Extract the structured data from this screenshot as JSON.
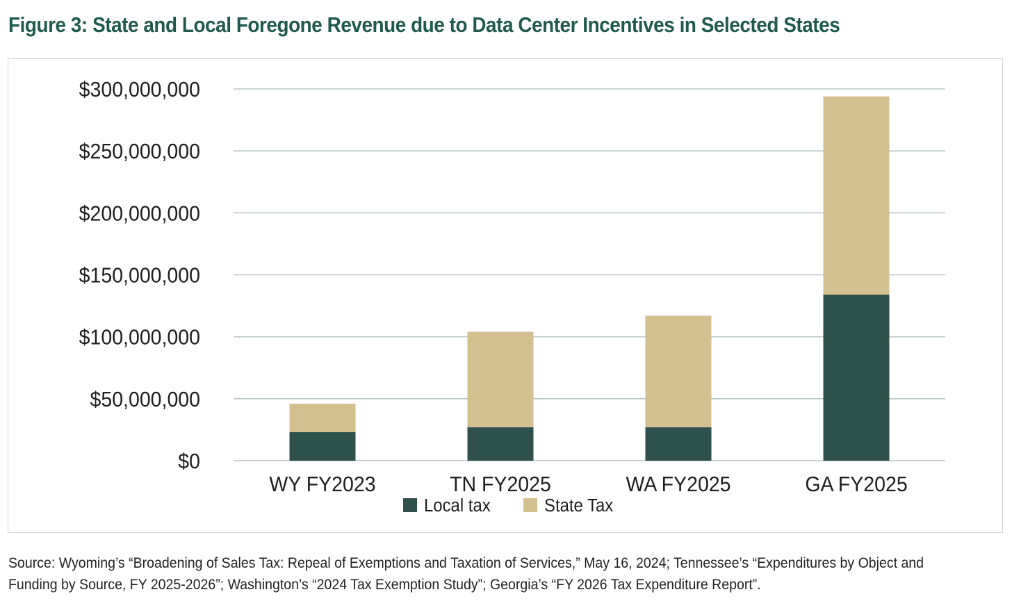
{
  "figure": {
    "title": "Figure 3: State and Local Foregone Revenue due to Data Center Incentives in Selected States",
    "source": "Source: Wyoming’s “Broadening of Sales Tax: Repeal of Exemptions and Taxation of Services,” May 16, 2024; Tennessee’s “Expenditures by Object and Funding by Source, FY 2025-2026”; Washington’s “2024 Tax Exemption Study”; Georgia’s “FY 2026 Tax Expenditure Report”."
  },
  "colors": {
    "local": "#2e514c",
    "state": "#d4bf91",
    "grid": "#b9c6c6",
    "title": "#1f5a4e"
  },
  "chart_data": {
    "type": "bar",
    "stacked": true,
    "title": "Figure 3: State and Local Foregone Revenue due to Data Center Incentives in Selected States",
    "xlabel": "",
    "ylabel": "",
    "categories": [
      "WY FY2023",
      "TN FY2025",
      "WA FY2025",
      "GA FY2025"
    ],
    "series": [
      {
        "name": "Local tax",
        "values": [
          23000000,
          27000000,
          27000000,
          134000000
        ]
      },
      {
        "name": "State Tax",
        "values": [
          23000000,
          77000000,
          90000000,
          160000000
        ]
      }
    ],
    "ylim": [
      0,
      300000000
    ],
    "yticks": [
      0,
      50000000,
      100000000,
      150000000,
      200000000,
      250000000,
      300000000
    ],
    "ytick_labels": [
      "$0",
      "$50,000,000",
      "$100,000,000",
      "$150,000,000",
      "$200,000,000",
      "$250,000,000",
      "$300,000,000"
    ],
    "grid": true,
    "legend_position": "bottom-center"
  }
}
